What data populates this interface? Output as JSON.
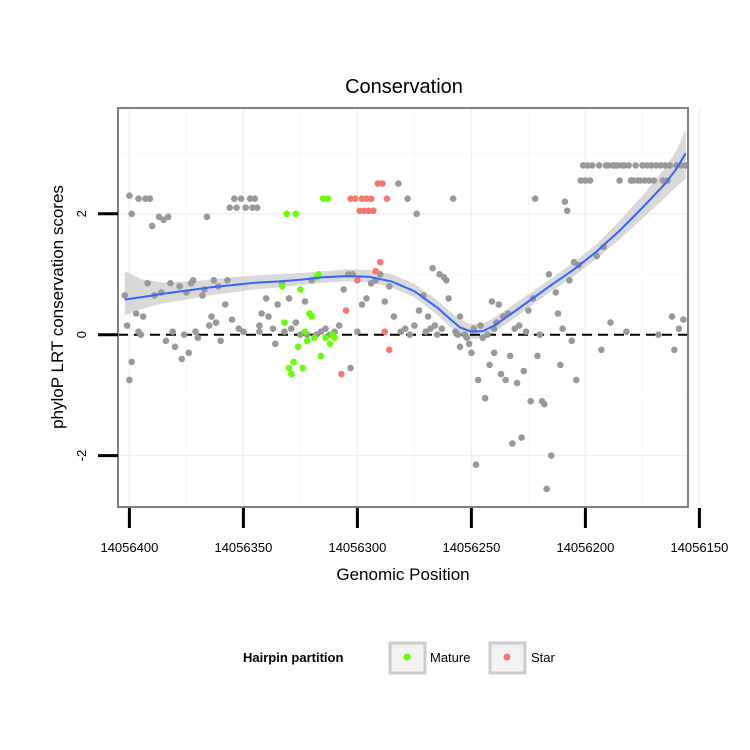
{
  "chart_data": {
    "type": "scatter",
    "title": "Conservation",
    "xlabel": "Genomic Position",
    "ylabel": "phyloP LRT conservation scores",
    "x_reversed": true,
    "xlim": [
      14056155,
      14056405
    ],
    "ylim": [
      -2.85,
      3.75
    ],
    "x_ticks": [
      14056400,
      14056350,
      14056300,
      14056250,
      14056200,
      14056150
    ],
    "x_tick_labels": [
      "14056400",
      "14056350",
      "14056300",
      "14056250",
      "14056200",
      "14056150"
    ],
    "y_ticks": [
      -2,
      0,
      2
    ],
    "y_tick_labels": [
      "-2",
      "0",
      "2"
    ],
    "reference_line": {
      "y": 0,
      "style": "dashed"
    },
    "grid": true,
    "legend": {
      "title": "Hairpin partition",
      "placement": "bottom",
      "entries": [
        {
          "label": "Mature",
          "color": "#66ff00"
        },
        {
          "label": "Star",
          "color": "#f8766d"
        }
      ]
    },
    "colors": {
      "other": "#999999",
      "smooth_line": "#3366ff",
      "ribbon": "#d0d0d0",
      "panel_border": "#7f7f7f"
    },
    "series": [
      {
        "name": "Other",
        "color": "#999999",
        "points": [
          [
            14056402,
            0.65
          ],
          [
            14056401,
            0.15
          ],
          [
            14056400,
            -0.75
          ],
          [
            14056400,
            2.3
          ],
          [
            14056399,
            -0.45
          ],
          [
            14056399,
            2.0
          ],
          [
            14056397,
            0.35
          ],
          [
            14056396,
            2.25
          ],
          [
            14056396,
            0.05
          ],
          [
            14056395,
            0.0
          ],
          [
            14056394,
            0.3
          ],
          [
            14056393,
            2.25
          ],
          [
            14056392,
            0.85
          ],
          [
            14056391,
            2.25
          ],
          [
            14056390,
            1.8
          ],
          [
            14056389,
            0.65
          ],
          [
            14056387,
            1.95
          ],
          [
            14056386,
            0.7
          ],
          [
            14056385,
            1.9
          ],
          [
            14056384,
            -0.1
          ],
          [
            14056383,
            1.95
          ],
          [
            14056382,
            0.85
          ],
          [
            14056381,
            0.05
          ],
          [
            14056380,
            -0.2
          ],
          [
            14056378,
            0.8
          ],
          [
            14056377,
            -0.4
          ],
          [
            14056376,
            0.0
          ],
          [
            14056375,
            0.7
          ],
          [
            14056374,
            -0.3
          ],
          [
            14056373,
            0.85
          ],
          [
            14056372,
            0.9
          ],
          [
            14056371,
            0.05
          ],
          [
            14056370,
            -0.05
          ],
          [
            14056368,
            0.65
          ],
          [
            14056367,
            0.75
          ],
          [
            14056366,
            1.95
          ],
          [
            14056365,
            0.15
          ],
          [
            14056364,
            0.3
          ],
          [
            14056363,
            0.9
          ],
          [
            14056362,
            0.2
          ],
          [
            14056361,
            0.8
          ],
          [
            14056360,
            -0.1
          ],
          [
            14056358,
            0.5
          ],
          [
            14056357,
            0.9
          ],
          [
            14056356,
            2.1
          ],
          [
            14056355,
            0.25
          ],
          [
            14056354,
            2.25
          ],
          [
            14056353,
            2.1
          ],
          [
            14056352,
            0.1
          ],
          [
            14056351,
            2.25
          ],
          [
            14056350,
            0.05
          ],
          [
            14056349,
            2.1
          ],
          [
            14056347,
            2.25
          ],
          [
            14056346,
            2.1
          ],
          [
            14056345,
            2.25
          ],
          [
            14056344,
            2.1
          ],
          [
            14056343,
            0.15
          ],
          [
            14056342,
            0.35
          ],
          [
            14056340,
            0.6
          ],
          [
            14056339,
            0.3
          ],
          [
            14056337,
            0.1
          ],
          [
            14056336,
            -0.15
          ],
          [
            14056335,
            0.5
          ],
          [
            14056333,
            0.85
          ],
          [
            14056332,
            0.05
          ],
          [
            14056330,
            0.6
          ],
          [
            14056329,
            0.1
          ],
          [
            14056327,
            0.2
          ],
          [
            14056325,
            0.0
          ],
          [
            14056323,
            0.55
          ],
          [
            14056322,
            0.0
          ],
          [
            14056320,
            0.9
          ],
          [
            14056318,
            0.0
          ],
          [
            14056316,
            0.05
          ],
          [
            14056314,
            0.1
          ],
          [
            14056312,
            0.0
          ],
          [
            14056310,
            0.05
          ],
          [
            14056308,
            0.15
          ],
          [
            14056306,
            0.75
          ],
          [
            14056304,
            1.0
          ],
          [
            14056303,
            -0.55
          ],
          [
            14056302,
            1.0
          ],
          [
            14056300,
            0.05
          ],
          [
            14056298,
            0.5
          ],
          [
            14056296,
            0.6
          ],
          [
            14056294,
            0.85
          ],
          [
            14056292,
            0.9
          ],
          [
            14056290,
            1.0
          ],
          [
            14056288,
            0.55
          ],
          [
            14056286,
            0.8
          ],
          [
            14056284,
            0.3
          ],
          [
            14056282,
            2.5
          ],
          [
            14056281,
            0.05
          ],
          [
            14056279,
            0.1
          ],
          [
            14056278,
            2.25
          ],
          [
            14056277,
            0.0
          ],
          [
            14056275,
            0.15
          ],
          [
            14056274,
            2.0
          ],
          [
            14056273,
            0.4
          ],
          [
            14056271,
            0.65
          ],
          [
            14056270,
            0.05
          ],
          [
            14056269,
            0.3
          ],
          [
            14056268,
            0.1
          ],
          [
            14056267,
            1.1
          ],
          [
            14056266,
            0.15
          ],
          [
            14056265,
            0.0
          ],
          [
            14056264,
            1.0
          ],
          [
            14056263,
            0.1
          ],
          [
            14056261,
            0.9
          ],
          [
            14056260,
            0.6
          ],
          [
            14056258,
            2.25
          ],
          [
            14056257,
            0.05
          ],
          [
            14056256,
            0.0
          ],
          [
            14056255,
            0.3
          ],
          [
            14056253,
            0.0
          ],
          [
            14056252,
            -0.05
          ],
          [
            14056251,
            -0.15
          ],
          [
            14056250,
            -0.3
          ],
          [
            14056249,
            0.1
          ],
          [
            14056248,
            -2.15
          ],
          [
            14056247,
            -0.75
          ],
          [
            14056246,
            0.15
          ],
          [
            14056245,
            -0.05
          ],
          [
            14056244,
            -1.05
          ],
          [
            14056243,
            0.0
          ],
          [
            14056242,
            -0.5
          ],
          [
            14056241,
            0.55
          ],
          [
            14056240,
            0.1
          ],
          [
            14056239,
            0.2
          ],
          [
            14056238,
            0.5
          ],
          [
            14056237,
            -0.65
          ],
          [
            14056236,
            0.3
          ],
          [
            14056235,
            -0.75
          ],
          [
            14056234,
            0.35
          ],
          [
            14056233,
            -0.35
          ],
          [
            14056232,
            -1.8
          ],
          [
            14056231,
            0.1
          ],
          [
            14056230,
            -0.8
          ],
          [
            14056229,
            0.15
          ],
          [
            14056228,
            -1.7
          ],
          [
            14056227,
            -0.6
          ],
          [
            14056226,
            0.05
          ],
          [
            14056225,
            0.4
          ],
          [
            14056224,
            -1.1
          ],
          [
            14056223,
            0.6
          ],
          [
            14056222,
            2.25
          ],
          [
            14056221,
            -0.35
          ],
          [
            14056220,
            0.0
          ],
          [
            14056219,
            -1.1
          ],
          [
            14056218,
            -1.15
          ],
          [
            14056217,
            -2.55
          ],
          [
            14056216,
            1.0
          ],
          [
            14056215,
            -2.0
          ],
          [
            14056213,
            0.7
          ],
          [
            14056212,
            0.35
          ],
          [
            14056211,
            -0.5
          ],
          [
            14056210,
            0.1
          ],
          [
            14056209,
            2.2
          ],
          [
            14056208,
            2.05
          ],
          [
            14056207,
            0.9
          ],
          [
            14056206,
            -0.1
          ],
          [
            14056205,
            1.2
          ],
          [
            14056204,
            -0.75
          ],
          [
            14056203,
            1.15
          ],
          [
            14056202,
            2.55
          ],
          [
            14056201,
            2.8
          ],
          [
            14056200,
            2.55
          ],
          [
            14056199,
            2.8
          ],
          [
            14056198,
            2.55
          ],
          [
            14056197,
            2.8
          ],
          [
            14056195,
            1.3
          ],
          [
            14056194,
            2.8
          ],
          [
            14056193,
            -0.25
          ],
          [
            14056192,
            1.45
          ],
          [
            14056191,
            2.8
          ],
          [
            14056190,
            2.8
          ],
          [
            14056189,
            0.2
          ],
          [
            14056188,
            2.8
          ],
          [
            14056187,
            2.8
          ],
          [
            14056186,
            2.8
          ],
          [
            14056185,
            2.55
          ],
          [
            14056184,
            2.8
          ],
          [
            14056183,
            2.8
          ],
          [
            14056182,
            0.05
          ],
          [
            14056181,
            2.8
          ],
          [
            14056180,
            2.55
          ],
          [
            14056179,
            2.55
          ],
          [
            14056178,
            2.8
          ],
          [
            14056177,
            2.55
          ],
          [
            14056176,
            2.55
          ],
          [
            14056175,
            2.8
          ],
          [
            14056174,
            2.55
          ],
          [
            14056173,
            2.8
          ],
          [
            14056172,
            2.55
          ],
          [
            14056171,
            2.8
          ],
          [
            14056170,
            2.55
          ],
          [
            14056169,
            2.8
          ],
          [
            14056168,
            0.0
          ],
          [
            14056167,
            2.8
          ],
          [
            14056166,
            2.55
          ],
          [
            14056165,
            2.8
          ],
          [
            14056164,
            2.55
          ],
          [
            14056163,
            2.8
          ],
          [
            14056162,
            0.3
          ],
          [
            14056161,
            -0.25
          ],
          [
            14056160,
            2.8
          ],
          [
            14056159,
            0.1
          ],
          [
            14056158,
            2.8
          ],
          [
            14056157,
            0.25
          ],
          [
            14056156,
            2.8
          ],
          [
            14056389,
            0.65
          ],
          [
            14056343,
            0.05
          ],
          [
            14056262,
            0.95
          ],
          [
            14056255,
            -0.2
          ],
          [
            14056240,
            -0.3
          ]
        ]
      },
      {
        "name": "Mature",
        "color": "#66ff00",
        "points": [
          [
            14056333,
            0.8
          ],
          [
            14056332,
            0.2
          ],
          [
            14056331,
            2.0
          ],
          [
            14056330,
            -0.55
          ],
          [
            14056329,
            -0.65
          ],
          [
            14056328,
            -0.45
          ],
          [
            14056327,
            2.0
          ],
          [
            14056326,
            -0.2
          ],
          [
            14056325,
            0.75
          ],
          [
            14056324,
            -0.55
          ],
          [
            14056323,
            0.05
          ],
          [
            14056322,
            -0.1
          ],
          [
            14056321,
            0.35
          ],
          [
            14056320,
            0.3
          ],
          [
            14056319,
            -0.05
          ],
          [
            14056318,
            0.95
          ],
          [
            14056317,
            1.0
          ],
          [
            14056316,
            -0.35
          ],
          [
            14056315,
            2.25
          ],
          [
            14056314,
            -0.05
          ],
          [
            14056313,
            2.25
          ],
          [
            14056312,
            -0.15
          ],
          [
            14056311,
            0.0
          ],
          [
            14056310,
            -0.05
          ]
        ]
      },
      {
        "name": "Star",
        "color": "#f8766d",
        "points": [
          [
            14056307,
            -0.65
          ],
          [
            14056305,
            0.4
          ],
          [
            14056303,
            2.25
          ],
          [
            14056301,
            2.25
          ],
          [
            14056300,
            0.9
          ],
          [
            14056299,
            2.05
          ],
          [
            14056298,
            2.25
          ],
          [
            14056297,
            2.05
          ],
          [
            14056296,
            2.25
          ],
          [
            14056295,
            2.05
          ],
          [
            14056294,
            2.25
          ],
          [
            14056293,
            2.05
          ],
          [
            14056292,
            1.05
          ],
          [
            14056291,
            2.5
          ],
          [
            14056290,
            1.2
          ],
          [
            14056289,
            2.5
          ],
          [
            14056288,
            0.05
          ],
          [
            14056287,
            2.25
          ],
          [
            14056286,
            -0.25
          ]
        ]
      }
    ],
    "smooth": {
      "x": [
        14056402,
        14056395,
        14056385,
        14056375,
        14056365,
        14056355,
        14056345,
        14056335,
        14056325,
        14056315,
        14056305,
        14056295,
        14056285,
        14056275,
        14056265,
        14056260,
        14056255,
        14056250,
        14056245,
        14056240,
        14056235,
        14056225,
        14056215,
        14056205,
        14056195,
        14056185,
        14056175,
        14056165,
        14056160,
        14056156
      ],
      "y": [
        0.58,
        0.62,
        0.68,
        0.73,
        0.78,
        0.82,
        0.86,
        0.88,
        0.91,
        0.95,
        0.97,
        0.96,
        0.88,
        0.72,
        0.45,
        0.28,
        0.12,
        0.05,
        0.06,
        0.15,
        0.28,
        0.55,
        0.82,
        1.08,
        1.38,
        1.72,
        2.1,
        2.5,
        2.75,
        3.0
      ],
      "lo": [
        0.32,
        0.42,
        0.52,
        0.58,
        0.65,
        0.7,
        0.75,
        0.78,
        0.82,
        0.86,
        0.88,
        0.87,
        0.78,
        0.62,
        0.33,
        0.15,
        0.0,
        -0.07,
        -0.06,
        0.04,
        0.17,
        0.44,
        0.72,
        0.97,
        1.26,
        1.58,
        1.92,
        2.27,
        2.45,
        2.58
      ],
      "hi": [
        1.05,
        0.92,
        0.86,
        0.88,
        0.91,
        0.95,
        0.98,
        1.0,
        1.02,
        1.05,
        1.08,
        1.07,
        1.0,
        0.84,
        0.57,
        0.4,
        0.25,
        0.17,
        0.18,
        0.28,
        0.4,
        0.67,
        0.93,
        1.2,
        1.5,
        1.88,
        2.3,
        2.76,
        3.05,
        3.4
      ]
    }
  }
}
